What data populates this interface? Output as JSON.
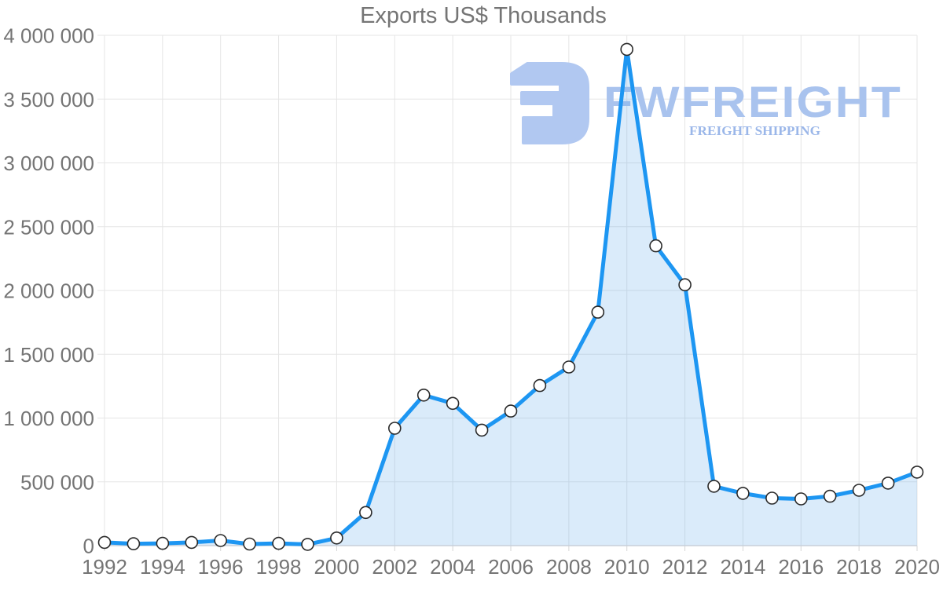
{
  "chart_data": {
    "type": "area",
    "title": "Exports US$ Thousands",
    "x": [
      1992,
      1993,
      1994,
      1995,
      1996,
      1997,
      1998,
      1999,
      2000,
      2001,
      2002,
      2003,
      2004,
      2005,
      2006,
      2007,
      2008,
      2009,
      2010,
      2011,
      2012,
      2013,
      2014,
      2015,
      2016,
      2017,
      2018,
      2019,
      2020
    ],
    "series": [
      {
        "name": "Exports US$ Thousands",
        "values": [
          25000,
          15000,
          18000,
          25000,
          40000,
          12000,
          18000,
          10000,
          60000,
          260000,
          920000,
          1180000,
          1115000,
          905000,
          1055000,
          1255000,
          1400000,
          1830000,
          3890000,
          2350000,
          2045000,
          465000,
          410000,
          372000,
          366000,
          387000,
          434000,
          490000,
          576000
        ]
      }
    ],
    "xlabel": "",
    "ylabel": "",
    "ylim": [
      0,
      4000000
    ],
    "ytick_step": 500000,
    "ytick_labels": [
      "0",
      "500 000",
      "1 000 000",
      "1 500 000",
      "2 000 000",
      "2 500 000",
      "3 000 000",
      "3 500 000",
      "4 000 000"
    ],
    "xtick_labels": [
      "1992",
      "1994",
      "1996",
      "1998",
      "2000",
      "2002",
      "2004",
      "2006",
      "2008",
      "2010",
      "2012",
      "2014",
      "2016",
      "2018",
      "2020"
    ],
    "grid": true,
    "legend_position": "none",
    "marker": "circle"
  },
  "watermark": {
    "brand": "FWFREIGHT",
    "tagline": "FREIGHT SHIPPING"
  },
  "colors": {
    "line": "#1d96f2",
    "area": "rgba(100,170,235,0.24)",
    "marker_fill": "#ffffff",
    "marker_stroke": "#2a2a2a",
    "grid": "#e5e5e5",
    "tick": "#d6d6d6",
    "axis_line": "#c8d0d9",
    "axis_text": "#757575",
    "title_text": "#757575",
    "watermark_logo": "#b1c8f1",
    "watermark_brand": "#a9c3ee",
    "watermark_tagline": "#9bb7e9"
  }
}
